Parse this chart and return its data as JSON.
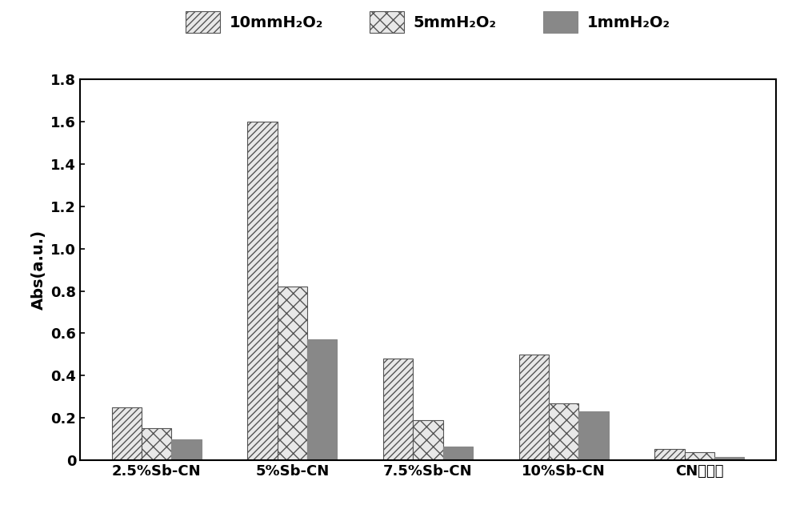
{
  "categories": [
    "2.5%Sb-CN",
    "5%Sb-CN",
    "7.5%Sb-CN",
    "10%Sb-CN",
    "CN纳米片"
  ],
  "series": {
    "10mmH2O2": [
      0.25,
      1.6,
      0.48,
      0.5,
      0.055
    ],
    "5mmH2O2": [
      0.15,
      0.82,
      0.19,
      0.27,
      0.038
    ],
    "1mmH2O2": [
      0.1,
      0.57,
      0.065,
      0.23,
      0.015
    ]
  },
  "legend_labels": [
    "10mmH₂O₂",
    "5mmH₂O₂",
    "1mmH₂O₂"
  ],
  "ylabel": "Abs(a.u.)",
  "ylim": [
    0,
    1.8
  ],
  "yticks": [
    0,
    0.2,
    0.4,
    0.6,
    0.8,
    1.0,
    1.2,
    1.4,
    1.6,
    1.8
  ],
  "bar_width": 0.22,
  "hatch_patterns": [
    "////",
    "/\\/\\",
    ""
  ],
  "face_colors": [
    "#e8e8e8",
    "#e8e8e8",
    "#888888"
  ],
  "edge_colors": [
    "#555555",
    "#555555",
    "#888888"
  ],
  "figure_width": 10.0,
  "figure_height": 6.61,
  "dpi": 100
}
